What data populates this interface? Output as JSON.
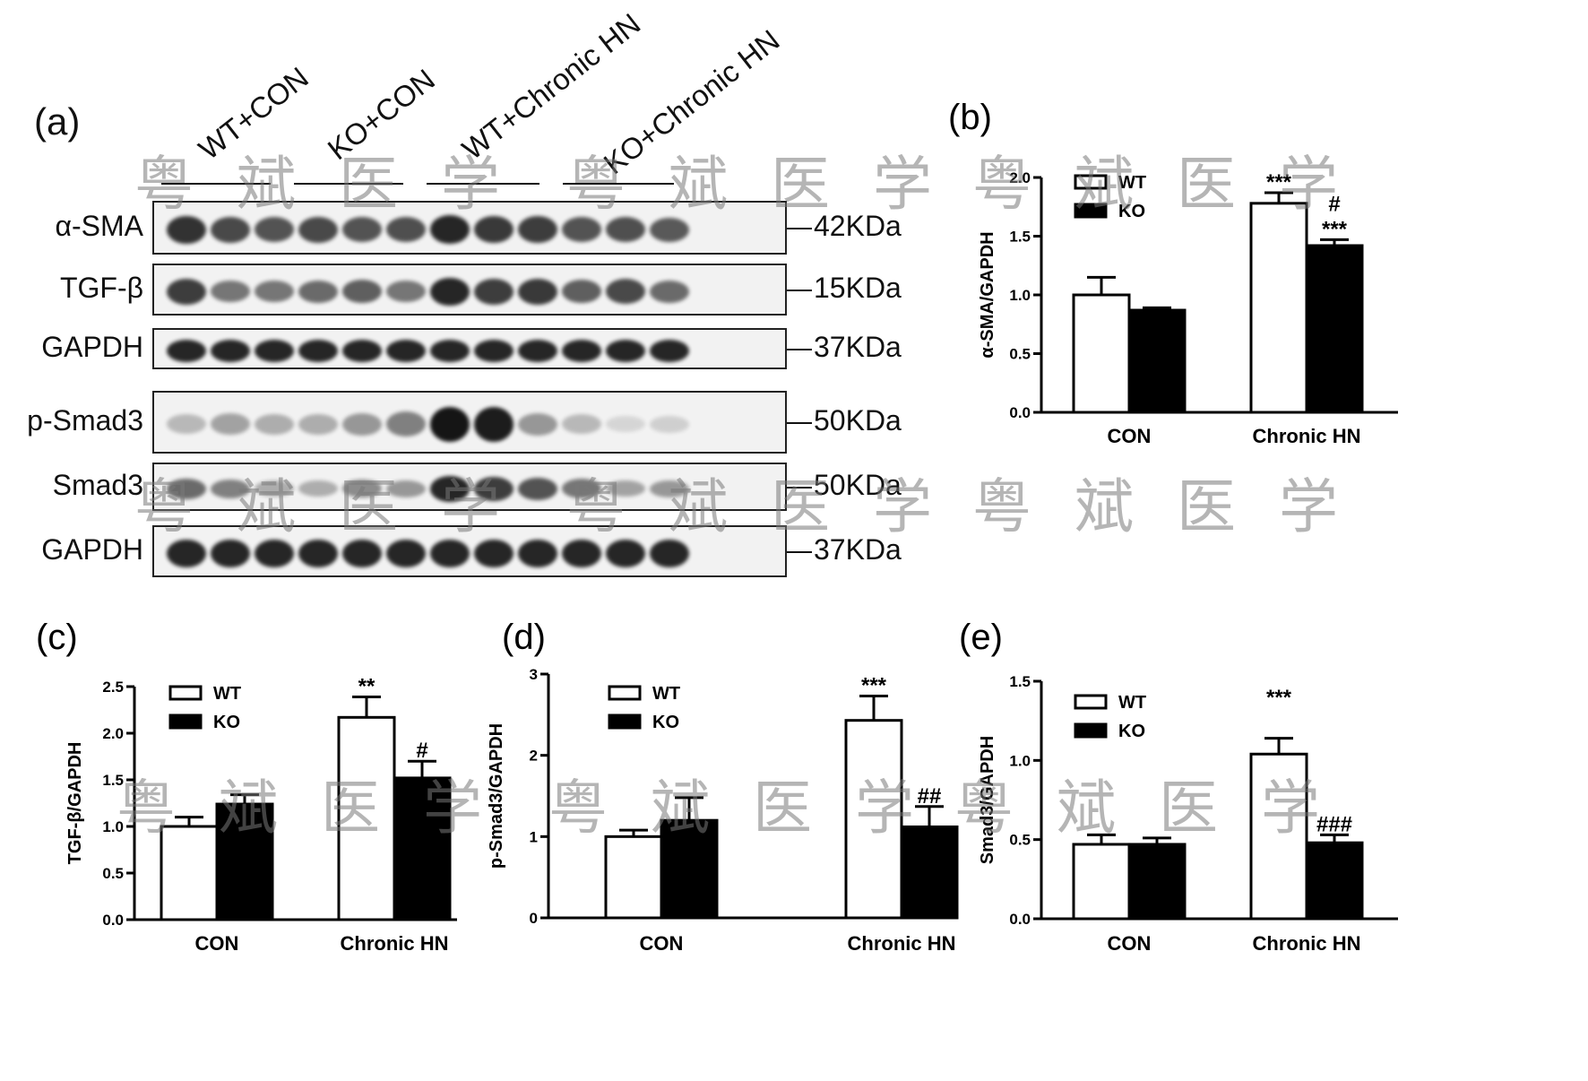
{
  "blot": {
    "panel_label": "(a)",
    "groups": [
      "WT+CON",
      "KO+CON",
      "WT+Chronic HN",
      "KO+Chronic HN"
    ],
    "rows": [
      {
        "protein": "α-SMA",
        "marker": "42KDa",
        "intensity": [
          0.85,
          0.75,
          0.7,
          0.75,
          0.7,
          0.72,
          0.9,
          0.82,
          0.8,
          0.7,
          0.72,
          0.68
        ]
      },
      {
        "protein": "TGF-β",
        "marker": "15KDa",
        "intensity": [
          0.8,
          0.55,
          0.55,
          0.6,
          0.65,
          0.55,
          0.9,
          0.8,
          0.82,
          0.65,
          0.75,
          0.6
        ]
      },
      {
        "protein": "GAPDH",
        "marker": "37KDa",
        "intensity": [
          0.9,
          0.9,
          0.9,
          0.9,
          0.9,
          0.9,
          0.9,
          0.9,
          0.9,
          0.9,
          0.9,
          0.9
        ]
      },
      {
        "protein": "p-Smad3",
        "marker": "50KDa",
        "intensity": [
          0.25,
          0.35,
          0.3,
          0.3,
          0.4,
          0.5,
          0.98,
          0.95,
          0.4,
          0.25,
          0.12,
          0.15
        ]
      },
      {
        "protein": "Smad3",
        "marker": "50KDa",
        "intensity": [
          0.6,
          0.5,
          0.3,
          0.3,
          0.45,
          0.4,
          0.9,
          0.8,
          0.7,
          0.55,
          0.35,
          0.4
        ]
      },
      {
        "protein": "GAPDH",
        "marker": "37KDa",
        "intensity": [
          0.9,
          0.9,
          0.9,
          0.9,
          0.9,
          0.9,
          0.9,
          0.9,
          0.9,
          0.9,
          0.9,
          0.9
        ]
      }
    ]
  },
  "watermark_text": "粤斌医学",
  "colors": {
    "wt_fill": "#ffffff",
    "ko_fill": "#000000",
    "axis": "#000000",
    "band": "#111111"
  },
  "chart_data": [
    {
      "panel_label": "(b)",
      "type": "bar",
      "categories": [
        "CON",
        "Chronic HN"
      ],
      "ylabel": "α-SMA/GAPDH",
      "ylim": [
        0,
        2.0
      ],
      "yticks": [
        "0.0",
        "0.5",
        "1.0",
        "1.5",
        "2.0"
      ],
      "ytick_values": [
        0,
        0.5,
        1.0,
        1.5,
        2.0
      ],
      "legend": [
        "WT",
        "KO"
      ],
      "legend_position": "top-left",
      "series": [
        {
          "name": "WT",
          "values": [
            1.0,
            1.78
          ],
          "errors": [
            0.15,
            0.09
          ]
        },
        {
          "name": "KO",
          "values": [
            0.87,
            1.42
          ],
          "errors": [
            0.02,
            0.05
          ]
        }
      ],
      "annotations": [
        {
          "series": 0,
          "category": 1,
          "lines": [
            "***"
          ]
        },
        {
          "series": 1,
          "category": 1,
          "lines": [
            "#",
            "***"
          ]
        }
      ]
    },
    {
      "panel_label": "(c)",
      "type": "bar",
      "categories": [
        "CON",
        "Chronic HN"
      ],
      "ylabel": "TGF-β/GAPDH",
      "ylim": [
        0,
        2.5
      ],
      "yticks": [
        "0.0",
        "0.5",
        "1.0",
        "1.5",
        "2.0",
        "2.5"
      ],
      "ytick_values": [
        0,
        0.5,
        1.0,
        1.5,
        2.0,
        2.5
      ],
      "legend": [
        "WT",
        "KO"
      ],
      "legend_position": "top-left",
      "series": [
        {
          "name": "WT",
          "values": [
            1.0,
            2.17
          ],
          "errors": [
            0.1,
            0.22
          ]
        },
        {
          "name": "KO",
          "values": [
            1.24,
            1.52
          ],
          "errors": [
            0.1,
            0.18
          ]
        }
      ],
      "annotations": [
        {
          "series": 0,
          "category": 1,
          "lines": [
            "**"
          ]
        },
        {
          "series": 1,
          "category": 1,
          "lines": [
            "#"
          ]
        }
      ]
    },
    {
      "panel_label": "(d)",
      "type": "bar",
      "categories": [
        "CON",
        "Chronic HN"
      ],
      "ylabel": "p-Smad3/GAPDH",
      "ylim": [
        0,
        3
      ],
      "yticks": [
        "0",
        "1",
        "2",
        "3"
      ],
      "ytick_values": [
        0,
        1,
        2,
        3
      ],
      "legend": [
        "WT",
        "KO"
      ],
      "legend_position": "top-left",
      "series": [
        {
          "name": "WT",
          "values": [
            1.0,
            2.43
          ],
          "errors": [
            0.08,
            0.3
          ]
        },
        {
          "name": "KO",
          "values": [
            1.2,
            1.12
          ],
          "errors": [
            0.28,
            0.25
          ]
        }
      ],
      "annotations": [
        {
          "series": 0,
          "category": 1,
          "lines": [
            "***"
          ]
        },
        {
          "series": 1,
          "category": 1,
          "lines": [
            "##"
          ]
        }
      ]
    },
    {
      "panel_label": "(e)",
      "type": "bar",
      "categories": [
        "CON",
        "Chronic HN"
      ],
      "ylabel": "Smad3/GAPDH",
      "ylim": [
        0,
        1.5
      ],
      "yticks": [
        "0.0",
        "0.5",
        "1.0",
        "1.5"
      ],
      "ytick_values": [
        0,
        0.5,
        1.0,
        1.5
      ],
      "legend": [
        "WT",
        "KO"
      ],
      "legend_position": "top-left",
      "series": [
        {
          "name": "WT",
          "values": [
            0.47,
            1.04
          ],
          "errors": [
            0.06,
            0.1
          ]
        },
        {
          "name": "KO",
          "values": [
            0.47,
            0.48
          ],
          "errors": [
            0.04,
            0.05
          ]
        }
      ],
      "annotations": [
        {
          "series": 0,
          "category": 1,
          "lines": [
            "***"
          ],
          "above_axis_top": true
        },
        {
          "series": 1,
          "category": 1,
          "lines": [
            "###"
          ]
        }
      ]
    }
  ]
}
